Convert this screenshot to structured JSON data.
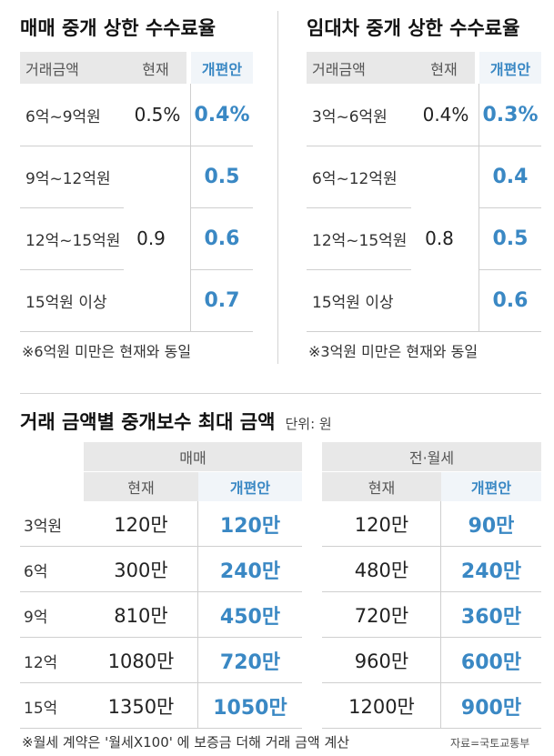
{
  "chart_data": [
    {
      "type": "table",
      "title": "매매 중개 상한 수수료율",
      "columns": [
        "거래금액",
        "현재",
        "개편안"
      ],
      "rows": [
        {
          "range": "6억~9억원",
          "current": "0.5%",
          "proposed": "0.4%"
        },
        {
          "range": "9억~12억원",
          "current": "0.9",
          "proposed": "0.5"
        },
        {
          "range": "12억~15억원",
          "current": "0.9",
          "proposed": "0.6"
        },
        {
          "range": "15억원 이상",
          "current": "0.9",
          "proposed": "0.7"
        }
      ],
      "merged_current": "0.9",
      "note": "※6억원 미만은 현재와 동일"
    },
    {
      "type": "table",
      "title": "임대차 중개 상한 수수료율",
      "columns": [
        "거래금액",
        "현재",
        "개편안"
      ],
      "rows": [
        {
          "range": "3억~6억원",
          "current": "0.4%",
          "proposed": "0.3%"
        },
        {
          "range": "6억~12억원",
          "current": "0.8",
          "proposed": "0.4"
        },
        {
          "range": "12억~15억원",
          "current": "0.8",
          "proposed": "0.5"
        },
        {
          "range": "15억원 이상",
          "current": "0.8",
          "proposed": "0.6"
        }
      ],
      "merged_current": "0.8",
      "note": "※3억원 미만은 현재와 동일"
    },
    {
      "type": "table",
      "title": "거래 금액별 중개보수 최대 금액",
      "unit": "단위: 원",
      "groups": [
        "매매",
        "전·월세"
      ],
      "subcolumns": [
        "현재",
        "개편안"
      ],
      "rows": [
        {
          "amount": "3억원",
          "sale_current": "120만",
          "sale_proposed": "120만",
          "lease_current": "120만",
          "lease_proposed": "90만"
        },
        {
          "amount": "6억",
          "sale_current": "300만",
          "sale_proposed": "240만",
          "lease_current": "480만",
          "lease_proposed": "240만"
        },
        {
          "amount": "9억",
          "sale_current": "810만",
          "sale_proposed": "450만",
          "lease_current": "720만",
          "lease_proposed": "360만"
        },
        {
          "amount": "12억",
          "sale_current": "1080만",
          "sale_proposed": "720만",
          "lease_current": "960만",
          "lease_proposed": "600만"
        },
        {
          "amount": "15억",
          "sale_current": "1350만",
          "sale_proposed": "1050만",
          "lease_current": "1200만",
          "lease_proposed": "900만"
        }
      ],
      "note": "※월세 계약은 '월세X100' 에 보증금 더해 거래 금액 계산",
      "source": "자료=국토교통부"
    }
  ],
  "colors": {
    "accent": "#3a88c4",
    "header_bg": "#e8e8e8",
    "rule": "#cfcfcf"
  }
}
